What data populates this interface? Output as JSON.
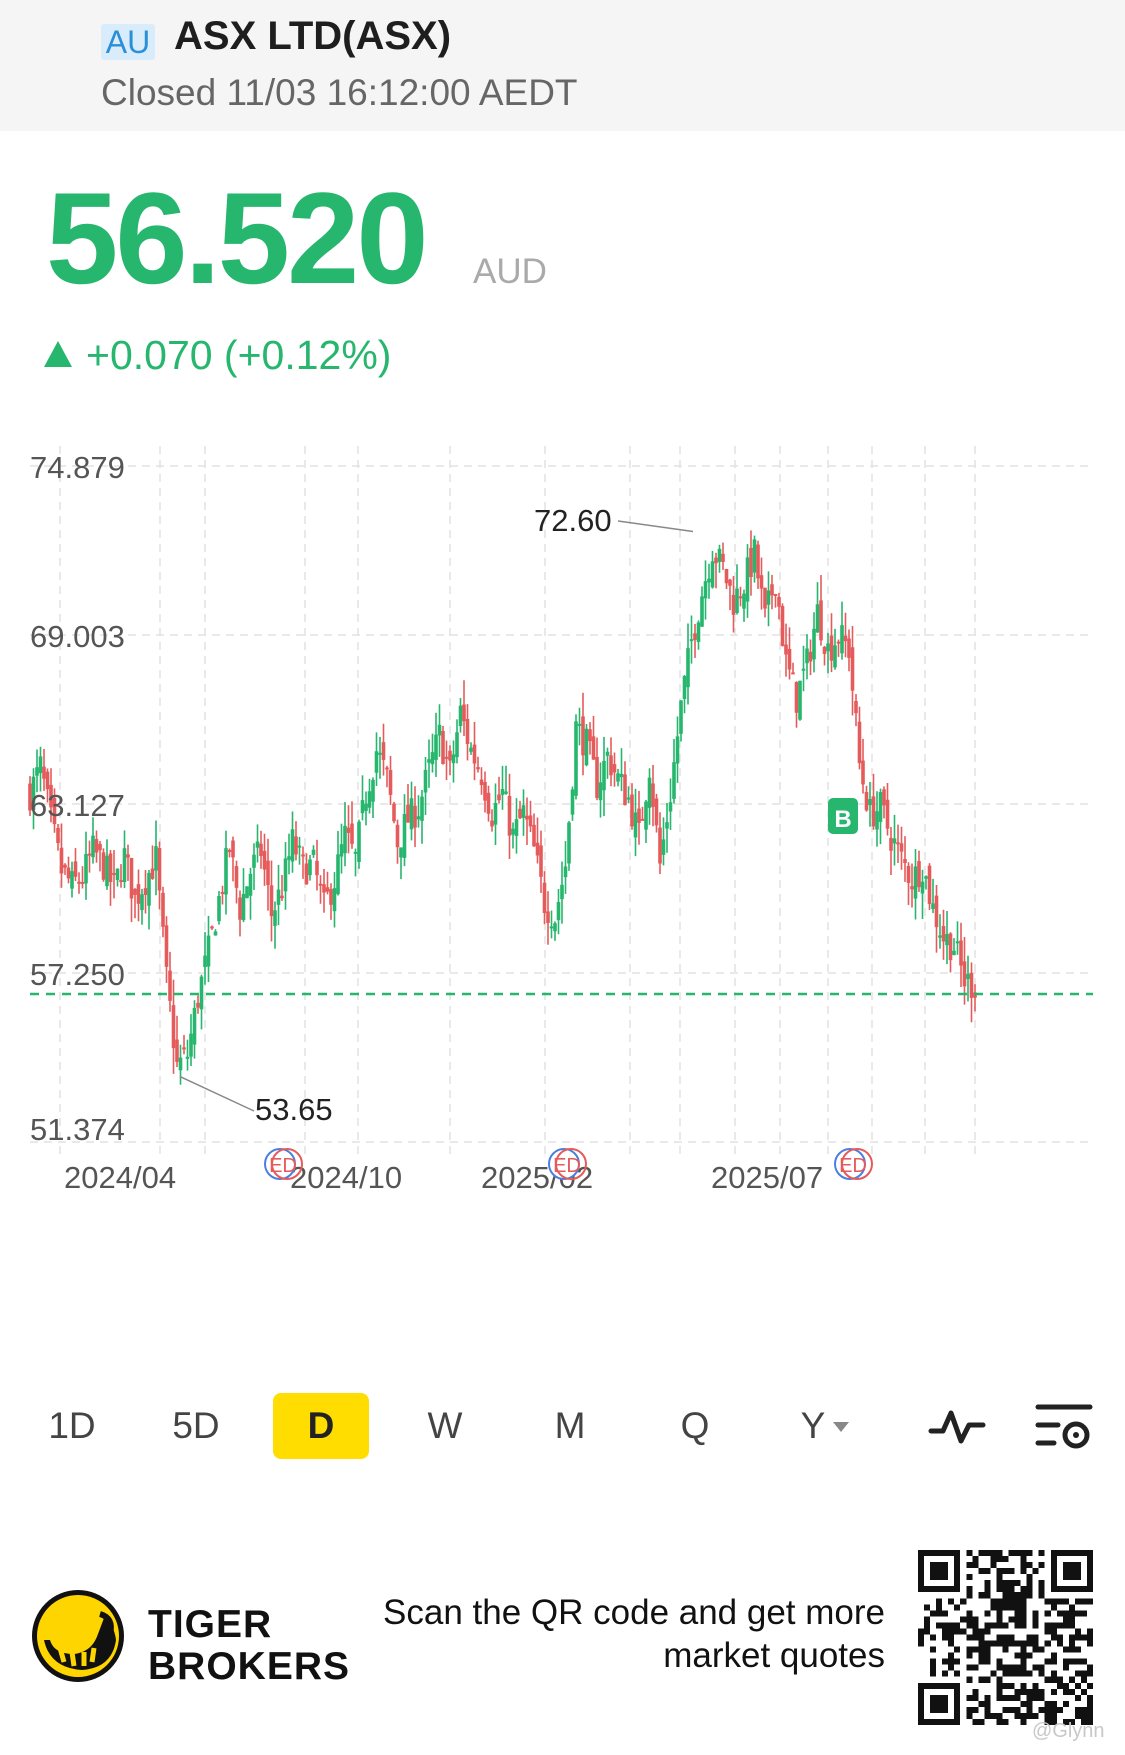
{
  "header": {
    "market_badge": "AU",
    "title": "ASX LTD(ASX)",
    "status": "Closed 11/03 16:12:00 AEDT"
  },
  "quote": {
    "price": "56.520",
    "currency": "AUD",
    "change": "+0.070 (+0.12%)"
  },
  "chart_data": {
    "type": "candlestick",
    "y_axis_labels": [
      "74.879",
      "69.003",
      "63.127",
      "57.250",
      "51.374"
    ],
    "x_axis_labels": [
      "2024/04",
      "2024/10",
      "2025/02",
      "2025/07"
    ],
    "ylim": [
      51.374,
      74.879
    ],
    "annotations": [
      {
        "label": "72.60",
        "type": "high"
      },
      {
        "label": "53.65",
        "type": "low"
      }
    ],
    "current_price_line": 56.52,
    "buy_marker": "B",
    "event_markers": [
      "ED",
      "ED",
      "ED"
    ],
    "key_closes": [
      63.5,
      64.4,
      62.5,
      60.8,
      60.3,
      60.6,
      61.5,
      61.0,
      60.2,
      61.3,
      59.8,
      60.5,
      61.2,
      57.0,
      54.0,
      54.4,
      56.4,
      58.0,
      59.8,
      61.6,
      59.5,
      60.8,
      61.5,
      59.3,
      60.2,
      61.8,
      60.9,
      61.0,
      59.5,
      60.5,
      62.0,
      61.2,
      63.5,
      65.0,
      64.0,
      61.8,
      62.6,
      63.0,
      64.3,
      65.5,
      64.2,
      66.3,
      65.0,
      64.2,
      62.8,
      63.5,
      62.0,
      62.8,
      61.5,
      59.7,
      59.2,
      61.0,
      65.8,
      65.2,
      63.8,
      64.8,
      64.0,
      63.3,
      62.0,
      64.5,
      61.0,
      63.5,
      66.5,
      68.8,
      70.5,
      72.0,
      71.3,
      70.2,
      70.8,
      71.8,
      69.5,
      71.0,
      68.0,
      66.8,
      68.0,
      69.8,
      68.5,
      69.0,
      68.5,
      64.5,
      62.8,
      63.0,
      62.0,
      61.2,
      60.5,
      61.0,
      59.5,
      58.5,
      58.2,
      57.0,
      56.8
    ]
  },
  "periods": [
    {
      "label": "1D"
    },
    {
      "label": "5D"
    },
    {
      "label": "D",
      "active": true
    },
    {
      "label": "W"
    },
    {
      "label": "M"
    },
    {
      "label": "Q"
    },
    {
      "label": "Y"
    }
  ],
  "icons": {
    "indicator": "indicator-icon",
    "settings": "chart-settings-icon"
  },
  "footer": {
    "brand_line1": "TIGER",
    "brand_line2": "BROKERS",
    "promo_line1": "Scan the QR code and get more",
    "promo_line2": "market quotes",
    "watermark": "@Glynn"
  },
  "colors": {
    "up": "#26b66e",
    "down": "#e55b5b",
    "accent": "#ffdd00",
    "grid": "#e2e2e2"
  }
}
